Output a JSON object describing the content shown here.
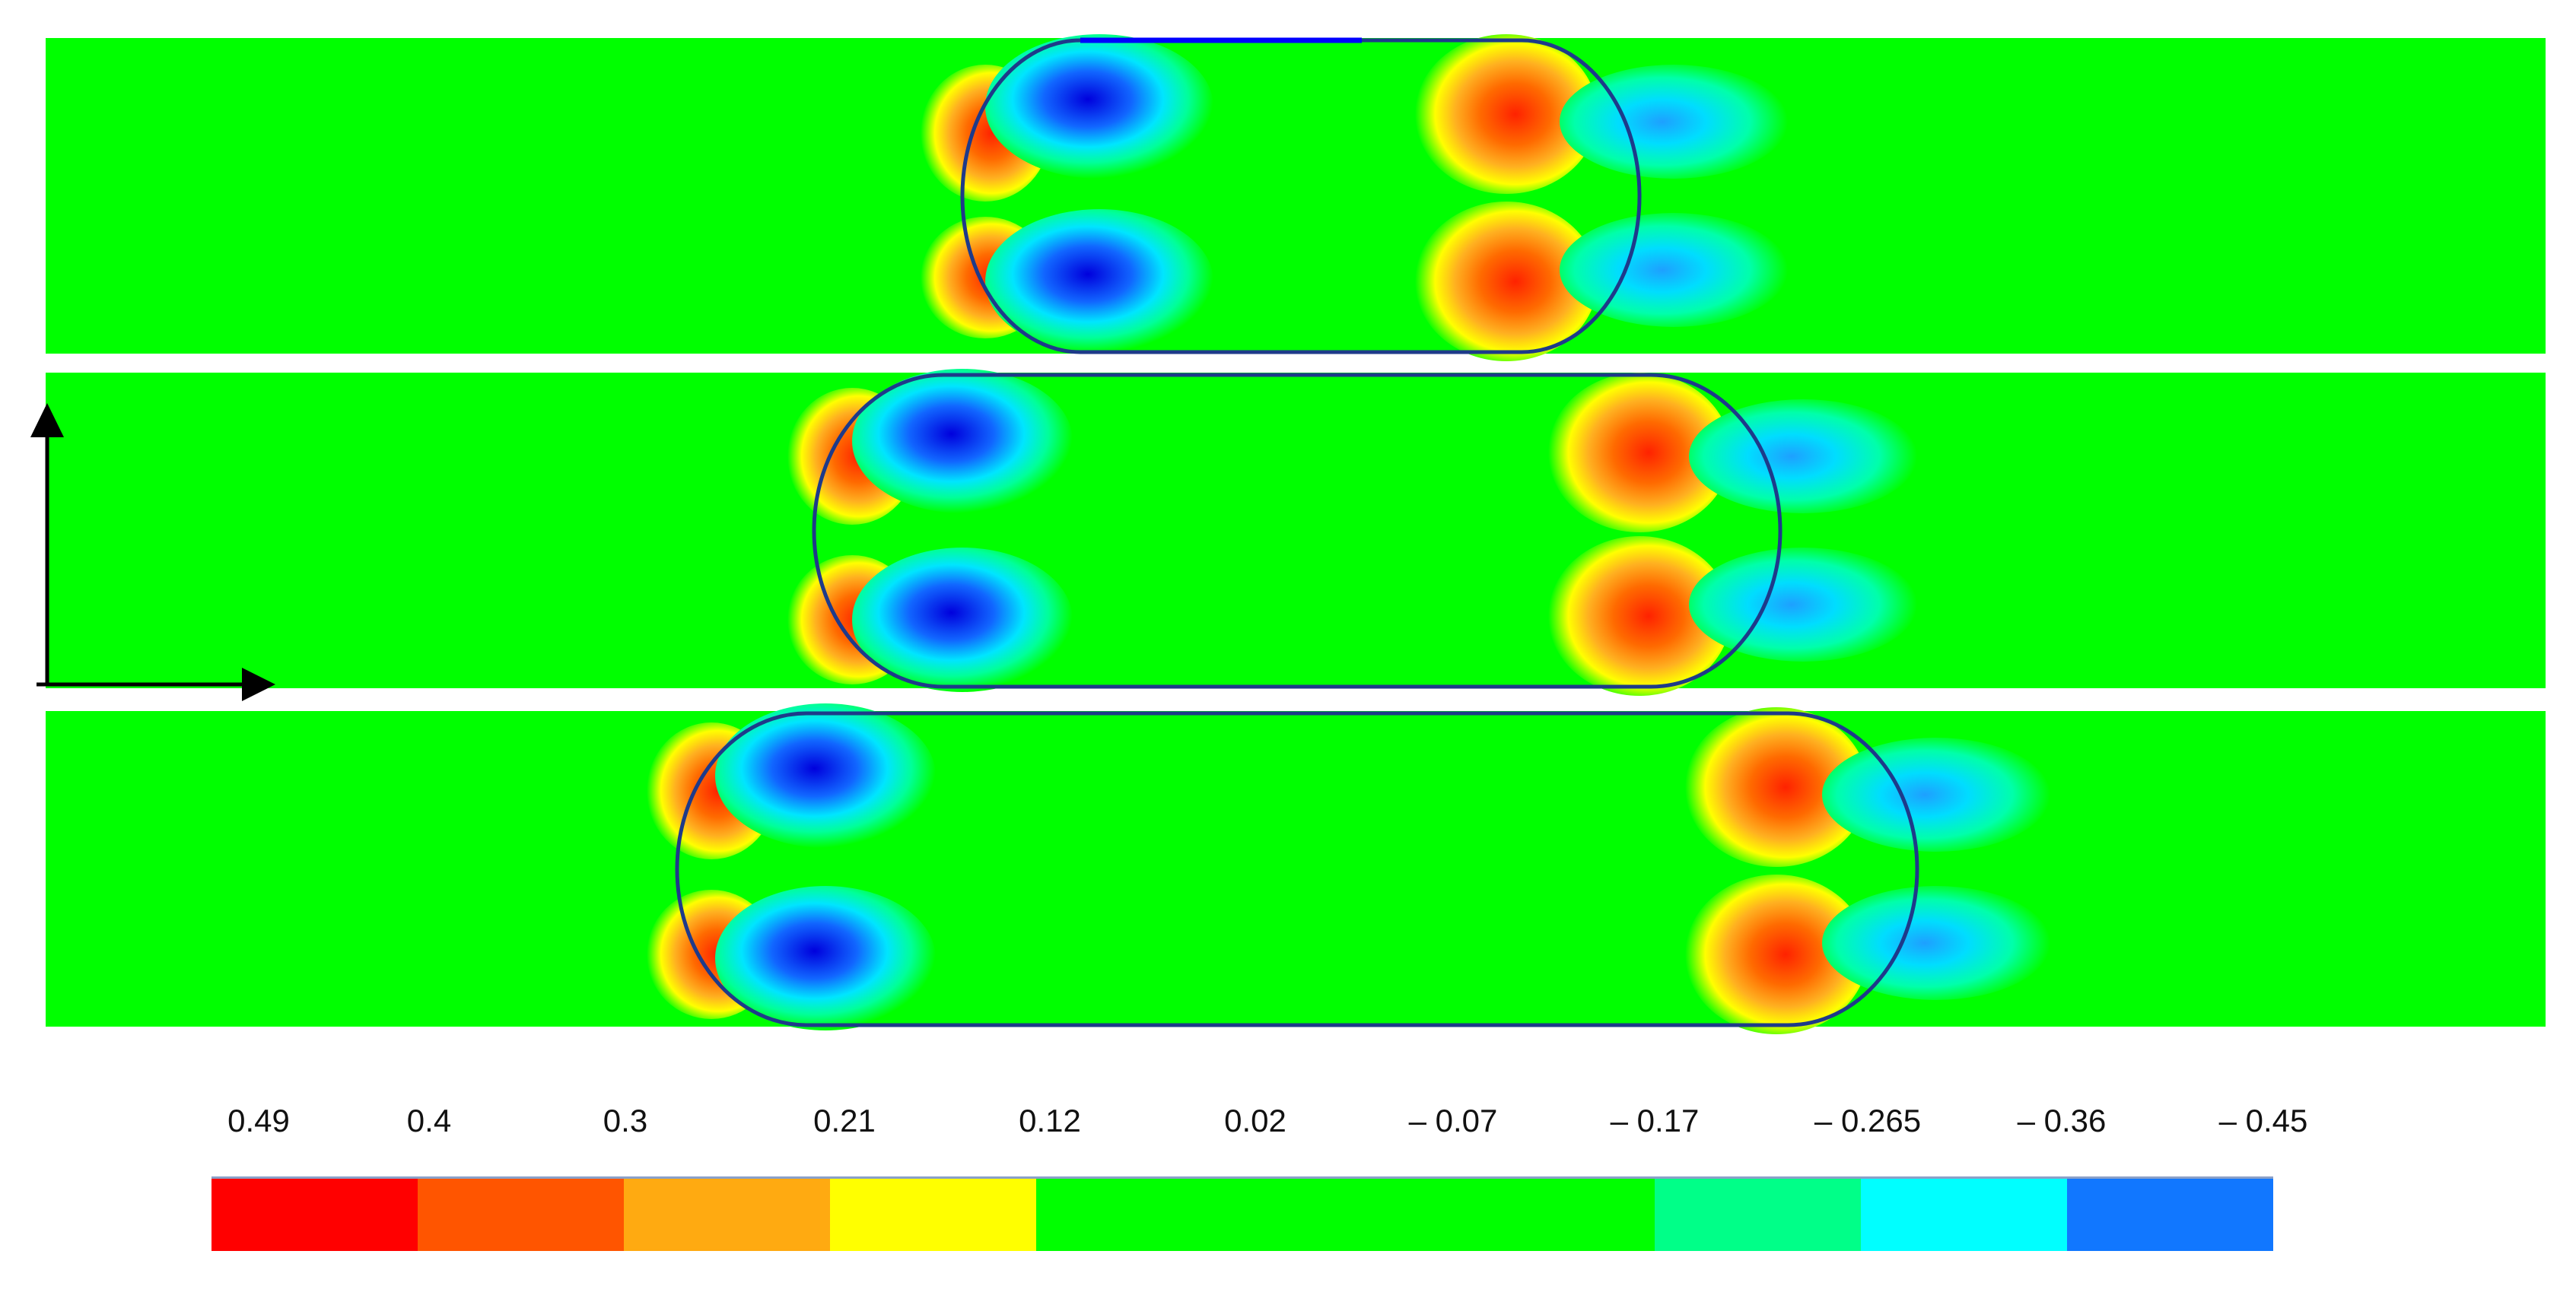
{
  "legend": {
    "labels": [
      "0.49",
      "0.4",
      "0.3",
      "0.21",
      "0.12",
      "0.02",
      "– 0.07",
      "– 0.17",
      "– 0.265",
      "– 0.36",
      "– 0.45"
    ],
    "colors": [
      "#ff0000",
      "#ff5500",
      "#ffaa11",
      "#ffff00",
      "#00ff00",
      "#00ff00",
      "#00ff00",
      "#00ff88",
      "#00ffff",
      "#1177ff",
      "#0000ff"
    ]
  },
  "colors": {
    "background_field": "#00ff00",
    "interface_line": "#1e3a8a",
    "axes": "#000000"
  },
  "panels": [
    {
      "name": "panel-top"
    },
    {
      "name": "panel-middle"
    },
    {
      "name": "panel-bottom"
    }
  ]
}
